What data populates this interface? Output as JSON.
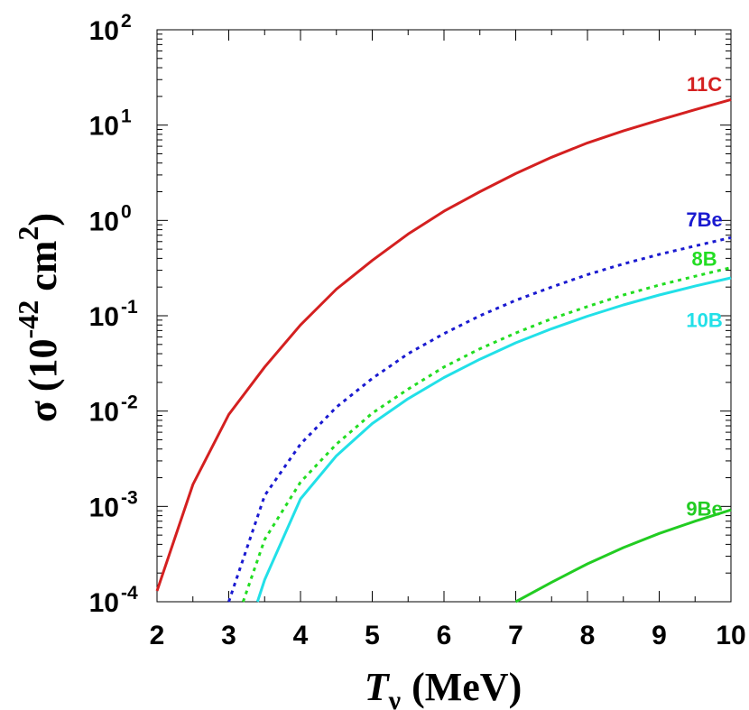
{
  "chart_data": {
    "type": "line",
    "title": "",
    "x_axis": {
      "label_symbol": "T",
      "label_subscript": "ν",
      "label_unit": "(MeV)",
      "range": [
        2,
        10
      ],
      "ticks": [
        "2",
        "3",
        "4",
        "5",
        "6",
        "7",
        "8",
        "9",
        "10"
      ],
      "tick_values": [
        2,
        3,
        4,
        5,
        6,
        7,
        8,
        9,
        10
      ]
    },
    "y_axis": {
      "label_symbol": "σ",
      "label_open": "(10",
      "label_exp1": "-42",
      "label_mid": "cm",
      "label_exp2": "2",
      "label_close": ")",
      "scale": "log",
      "range": [
        0.0001,
        100
      ],
      "ticks": [
        {
          "base": "10",
          "exp": "-4",
          "value": 0.0001
        },
        {
          "base": "10",
          "exp": "-3",
          "value": 0.001
        },
        {
          "base": "10",
          "exp": "-2",
          "value": 0.01
        },
        {
          "base": "10",
          "exp": "-1",
          "value": 0.1
        },
        {
          "base": "10",
          "exp": "0",
          "value": 1
        },
        {
          "base": "10",
          "exp": "1",
          "value": 10
        },
        {
          "base": "10",
          "exp": "2",
          "value": 100
        }
      ]
    },
    "grid": false,
    "series": [
      {
        "name": "11C",
        "color": "#d42020",
        "style": "solid",
        "x": [
          2.0,
          2.5,
          3.0,
          3.5,
          4.0,
          4.5,
          5.0,
          5.5,
          6.0,
          6.5,
          7.0,
          7.5,
          8.0,
          8.5,
          9.0,
          9.5,
          10.0
        ],
        "y": [
          0.00013,
          0.0017,
          0.0092,
          0.029,
          0.08,
          0.19,
          0.38,
          0.72,
          1.25,
          2.0,
          3.1,
          4.6,
          6.5,
          8.7,
          11.3,
          14.5,
          18.5
        ]
      },
      {
        "name": "7Be",
        "color": "#1a1ad0",
        "style": "dotted",
        "x": [
          3.0,
          3.5,
          4.0,
          4.5,
          5.0,
          5.5,
          6.0,
          6.5,
          7.0,
          7.5,
          8.0,
          8.5,
          9.0,
          9.5,
          10.0
        ],
        "y": [
          0.0001,
          0.0013,
          0.0045,
          0.011,
          0.022,
          0.04,
          0.065,
          0.1,
          0.145,
          0.2,
          0.27,
          0.35,
          0.44,
          0.54,
          0.66
        ]
      },
      {
        "name": "8B",
        "color": "#22dd22",
        "style": "dotted",
        "x": [
          3.2,
          3.5,
          4.0,
          4.5,
          5.0,
          5.5,
          6.0,
          6.5,
          7.0,
          7.5,
          8.0,
          8.5,
          9.0,
          9.5,
          10.0
        ],
        "y": [
          0.0001,
          0.00045,
          0.0018,
          0.0045,
          0.0095,
          0.017,
          0.029,
          0.045,
          0.066,
          0.093,
          0.125,
          0.165,
          0.21,
          0.26,
          0.32
        ]
      },
      {
        "name": "10B",
        "color": "#22e0e8",
        "style": "solid",
        "x": [
          3.4,
          3.5,
          4.0,
          4.5,
          5.0,
          5.5,
          6.0,
          6.5,
          7.0,
          7.5,
          8.0,
          8.5,
          9.0,
          9.5,
          10.0
        ],
        "y": [
          0.0001,
          0.00017,
          0.0012,
          0.0034,
          0.0074,
          0.0135,
          0.0225,
          0.035,
          0.052,
          0.073,
          0.099,
          0.13,
          0.165,
          0.205,
          0.25
        ]
      },
      {
        "name": "9Be",
        "color": "#22cc22",
        "style": "solid",
        "x": [
          7.0,
          7.5,
          8.0,
          8.5,
          9.0,
          9.5,
          10.0
        ],
        "y": [
          0.0001,
          0.00016,
          0.00025,
          0.00037,
          0.00052,
          0.0007,
          0.00092
        ]
      }
    ],
    "annotations": [
      {
        "text": "11C",
        "color": "#d42020",
        "at_x": 9.63,
        "at_y": 27
      },
      {
        "text": "7Be",
        "color": "#1a1ad0",
        "at_x": 9.63,
        "at_y": 1.03
      },
      {
        "text": "8B",
        "color": "#22dd22",
        "at_x": 9.63,
        "at_y": 0.4
      },
      {
        "text": "10B",
        "color": "#22e0e8",
        "at_x": 9.63,
        "at_y": 0.091
      },
      {
        "text": "9Be",
        "color": "#22cc22",
        "at_x": 9.63,
        "at_y": 0.00095
      }
    ]
  }
}
